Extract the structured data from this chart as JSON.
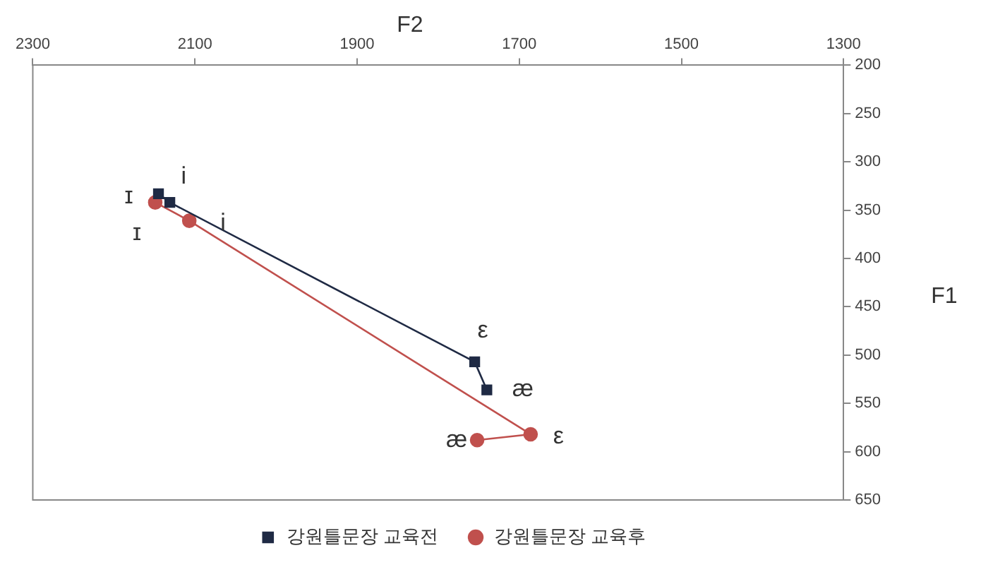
{
  "chart_data": {
    "type": "line",
    "xlabel": "F2",
    "ylabel": "F1",
    "xlim": [
      2300,
      1300
    ],
    "xticks": [
      2300,
      2100,
      1900,
      1700,
      1500,
      1300
    ],
    "ylim": [
      650,
      200
    ],
    "yticks": [
      200,
      250,
      300,
      350,
      400,
      450,
      500,
      550,
      600,
      650
    ],
    "grid": false,
    "legend": "bottom",
    "line_style": "solid",
    "series": [
      {
        "name": "강원틀문장 교육전",
        "color": "#1f2a44",
        "marker": "square",
        "x": [
          2145,
          2131,
          1755,
          1740
        ],
        "values": [
          333,
          342,
          507,
          536
        ]
      },
      {
        "name": "강원틀문장 교육후",
        "color": "#c0504d",
        "marker": "circle",
        "x": [
          2149,
          2107,
          1686,
          1752
        ],
        "values": [
          342,
          361,
          582,
          588
        ]
      }
    ],
    "annotations": [
      {
        "text": "ɪ",
        "x": 2145,
        "y": 333
      },
      {
        "text": "i",
        "x": 2131,
        "y": 342
      },
      {
        "text": "ε",
        "x": 1755,
        "y": 507
      },
      {
        "text": "æ",
        "x": 1740,
        "y": 536
      },
      {
        "text": "ɪ",
        "x": 2149,
        "y": 342
      },
      {
        "text": "i",
        "x": 2107,
        "y": 361
      },
      {
        "text": "ε",
        "x": 1686,
        "y": 582
      },
      {
        "text": "æ",
        "x": 1752,
        "y": 588
      }
    ]
  }
}
